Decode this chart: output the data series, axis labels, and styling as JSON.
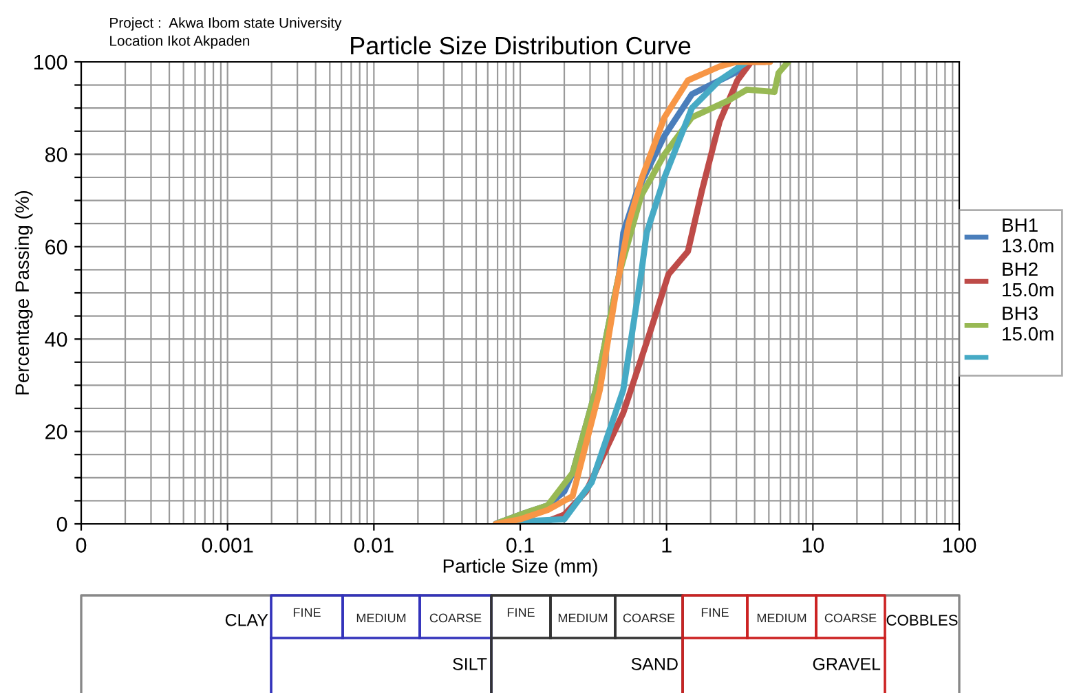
{
  "chart_data": [
    {
      "type": "line",
      "title": "Particle Size Distribution Curve",
      "xlabel": "Particle Size (mm)",
      "ylabel": "Percentage Passing (%)",
      "annotations": [
        "Project :  Akwa Ibom state University",
        "Location Ikot Akpaden"
      ],
      "log": "x",
      "xlim": [
        0.0001,
        100
      ],
      "xticks": [
        {
          "value": 0.0001,
          "label": "0"
        },
        0.001,
        0.01,
        0.1,
        1,
        10,
        100
      ],
      "ylim": [
        0,
        100
      ],
      "yticks": [
        0,
        {
          "value": 5,
          "label": null
        },
        {
          "value": 10,
          "label": null
        },
        {
          "value": 15,
          "label": null
        },
        20,
        {
          "value": 25,
          "label": null
        },
        {
          "value": 30,
          "label": null
        },
        {
          "value": 35,
          "label": null
        },
        40,
        {
          "value": 45,
          "label": null
        },
        {
          "value": 50,
          "label": null
        },
        {
          "value": 55,
          "label": null
        },
        60,
        {
          "value": 65,
          "label": null
        },
        {
          "value": 70,
          "label": null
        },
        {
          "value": 75,
          "label": null
        },
        80,
        {
          "value": 85,
          "label": null
        },
        {
          "value": 90,
          "label": null
        },
        {
          "value": 95,
          "label": null
        },
        100
      ],
      "grid": true,
      "legend": "right",
      "marker": "none",
      "line_style": "solid",
      "series": [
        {
          "name": "BH1 13.0m",
          "color": "#4a7ebb",
          "x": [
            0.068,
            0.1,
            0.154,
            0.2,
            0.228,
            0.328,
            0.407,
            0.474,
            0.506,
            0.628,
            0.968,
            1.49,
            2.67,
            3.54
          ],
          "values": [
            0,
            2,
            4,
            7,
            11,
            29,
            44,
            54,
            63,
            72,
            84,
            93,
            97,
            99
          ]
        },
        {
          "name": "BH2 15.0m",
          "color": "#be4b48",
          "x": [
            0.1,
            0.138,
            0.2,
            0.282,
            0.506,
            0.78,
            1.03,
            1.4,
            1.74,
            2.3,
            3.05,
            3.78,
            4.69
          ],
          "values": [
            0,
            0,
            2,
            7,
            24,
            42,
            54,
            59,
            72,
            87,
            96,
            100,
            100
          ]
        },
        {
          "name": "BH3 15.0m",
          "color": "#98b954",
          "x": [
            0.068,
            0.1,
            0.154,
            0.228,
            0.328,
            0.407,
            0.474,
            0.67,
            0.968,
            1.49,
            2.67,
            3.54,
            5.46,
            5.82,
            6.78
          ],
          "values": [
            0,
            2,
            4,
            11,
            29,
            44,
            54,
            71,
            80,
            88,
            91.7,
            94,
            93.5,
            97.6,
            100
          ]
        },
        {
          "name": null,
          "color": "#46aac5",
          "x": [
            0.068,
            0.1,
            0.2,
            0.308,
            0.506,
            0.67,
            0.731,
            0.968,
            1.49,
            2.3,
            3.54
          ],
          "values": [
            0,
            0.5,
            1,
            9,
            29,
            54,
            63,
            75,
            90,
            96,
            100
          ]
        },
        {
          "name": null,
          "color": "#f79646",
          "x": [
            0.068,
            0.1,
            0.154,
            0.228,
            0.35,
            0.45,
            0.55,
            0.68,
            0.968,
            1.4,
            2.3,
            3.0,
            5.1
          ],
          "values": [
            0,
            1,
            3,
            6,
            29,
            50,
            65,
            75,
            88,
            96,
            99,
            100,
            100
          ]
        }
      ]
    },
    {
      "type": "other",
      "annotations": [
        "CLAY",
        "FINE",
        "MEDIUM",
        "COARSE",
        "FINE",
        "MEDIUM",
        "COARSE",
        "FINE",
        "MEDIUM",
        "COARSE",
        "COBBLES",
        "SILT",
        "SAND",
        "GRAVEL"
      ]
    }
  ]
}
